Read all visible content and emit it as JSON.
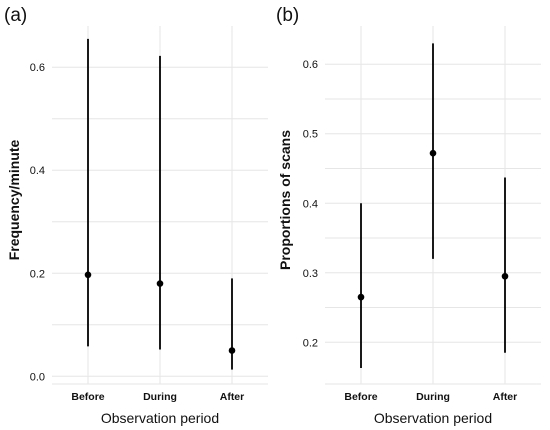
{
  "figure": {
    "panels": [
      {
        "label": "(a)",
        "ylabel": "Frequency/minute",
        "xlabel": "Observation period"
      },
      {
        "label": "(b)",
        "ylabel": "Proportions of scans",
        "xlabel": "Observation period"
      }
    ]
  },
  "chart_data": [
    {
      "type": "scatter",
      "title": "(a)",
      "xlabel": "Observation period",
      "ylabel": "Frequency/minute",
      "categories": [
        "Before",
        "During",
        "After"
      ],
      "values": [
        0.197,
        0.18,
        0.05
      ],
      "ci_low": [
        0.058,
        0.052,
        0.013
      ],
      "ci_high": [
        0.655,
        0.622,
        0.19
      ],
      "ylim": [
        -0.015,
        0.68
      ],
      "yticks": [
        0.0,
        0.2,
        0.4,
        0.6
      ],
      "ytick_labels": [
        "0.0",
        "0.2",
        "0.4",
        "0.6"
      ],
      "grid": true,
      "legend": "none"
    },
    {
      "type": "scatter",
      "title": "(b)",
      "xlabel": "Observation period",
      "ylabel": "Proportions of scans",
      "categories": [
        "Before",
        "During",
        "After"
      ],
      "values": [
        0.265,
        0.472,
        0.295
      ],
      "ci_low": [
        0.163,
        0.32,
        0.185
      ],
      "ci_high": [
        0.4,
        0.63,
        0.437
      ],
      "ylim": [
        0.14,
        0.655
      ],
      "yticks": [
        0.2,
        0.3,
        0.4,
        0.5,
        0.6
      ],
      "ytick_labels": [
        "0.2",
        "0.3",
        "0.4",
        "0.5",
        "0.6"
      ],
      "grid": true,
      "legend": "none"
    }
  ]
}
